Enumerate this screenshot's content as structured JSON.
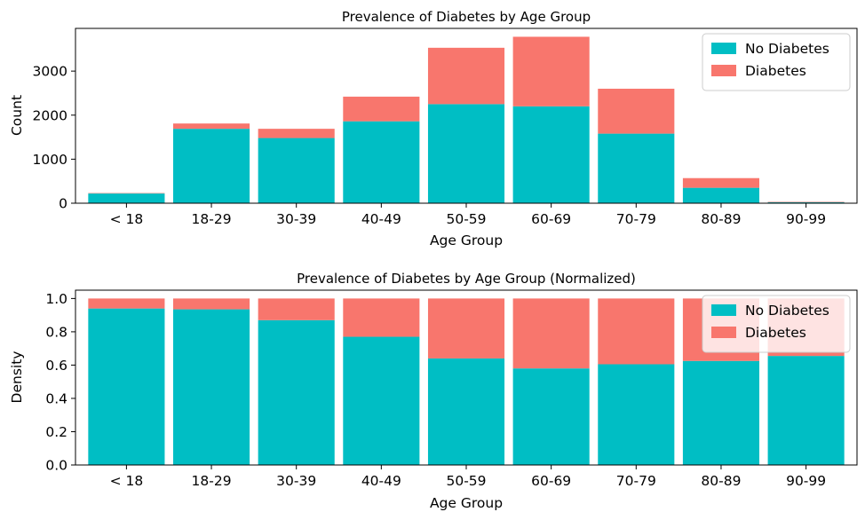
{
  "colors": {
    "no_diabetes": "#00BEC4",
    "diabetes": "#F8766D"
  },
  "chart_data": [
    {
      "type": "bar",
      "stacked": true,
      "title": "Prevalence of Diabetes by Age Group",
      "xlabel": "Age Group",
      "ylabel": "Count",
      "categories": [
        "< 18",
        "18-29",
        "30-39",
        "40-49",
        "50-59",
        "60-69",
        "70-79",
        "80-89",
        "90-99"
      ],
      "series": [
        {
          "name": "No Diabetes",
          "values": [
            220,
            1690,
            1480,
            1860,
            2250,
            2200,
            1580,
            350,
            20
          ]
        },
        {
          "name": "Diabetes",
          "values": [
            10,
            120,
            210,
            560,
            1280,
            1580,
            1020,
            220,
            10
          ]
        }
      ],
      "ylim": [
        0,
        3970
      ],
      "yticks": [
        0,
        1000,
        2000,
        3000
      ],
      "legend": "top-right",
      "grid": false
    },
    {
      "type": "bar",
      "stacked": true,
      "title": "Prevalence of Diabetes by Age Group (Normalized)",
      "xlabel": "Age Group",
      "ylabel": "Density",
      "categories": [
        "< 18",
        "18-29",
        "30-39",
        "40-49",
        "50-59",
        "60-69",
        "70-79",
        "80-89",
        "90-99"
      ],
      "series": [
        {
          "name": "No Diabetes",
          "values": [
            0.94,
            0.935,
            0.87,
            0.77,
            0.64,
            0.58,
            0.605,
            0.625,
            0.655
          ]
        },
        {
          "name": "Diabetes",
          "values": [
            0.06,
            0.065,
            0.13,
            0.23,
            0.36,
            0.42,
            0.395,
            0.375,
            0.345
          ]
        }
      ],
      "ylim": [
        0,
        1.05
      ],
      "yticks": [
        "0.0",
        "0.2",
        "0.4",
        "0.6",
        "0.8",
        "1.0"
      ],
      "legend": "top-right",
      "grid": false
    }
  ]
}
